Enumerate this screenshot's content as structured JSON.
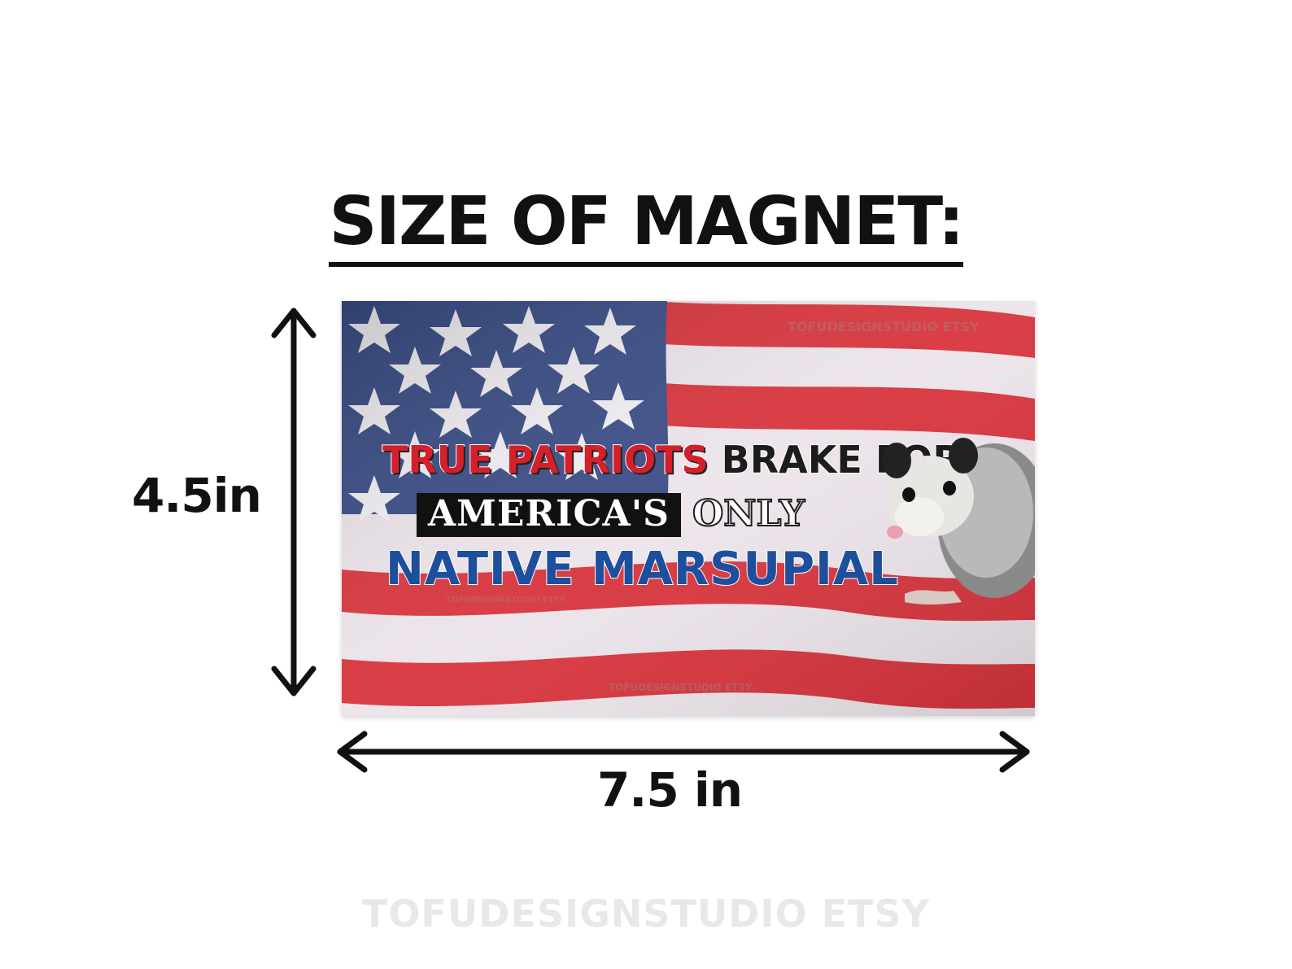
{
  "heading": "SIZE OF MAGNET:",
  "dimensions": {
    "height_label": "4.5in",
    "width_label": "7.5 in"
  },
  "magnet": {
    "slogan": {
      "red_text": "TRUE PATRIOTS",
      "black_text": "BRAKE FOR",
      "badge_text": "AMERICA'S",
      "outline_text": "ONLY",
      "blue_text": "NATIVE MARSUPIAL"
    },
    "watermark_small": "TOFUDESIGNSTUDIO ETSY"
  },
  "watermark": "TOFUDESIGNSTUDIO ETSY",
  "colors": {
    "flag_red": "#d8343c",
    "flag_blue": "#3a4d86",
    "slogan_red": "#d51f2a",
    "slogan_blue": "#1e4f9c"
  },
  "icons": [
    "vertical-double-arrow-icon",
    "horizontal-double-arrow-icon",
    "opossum-image"
  ]
}
